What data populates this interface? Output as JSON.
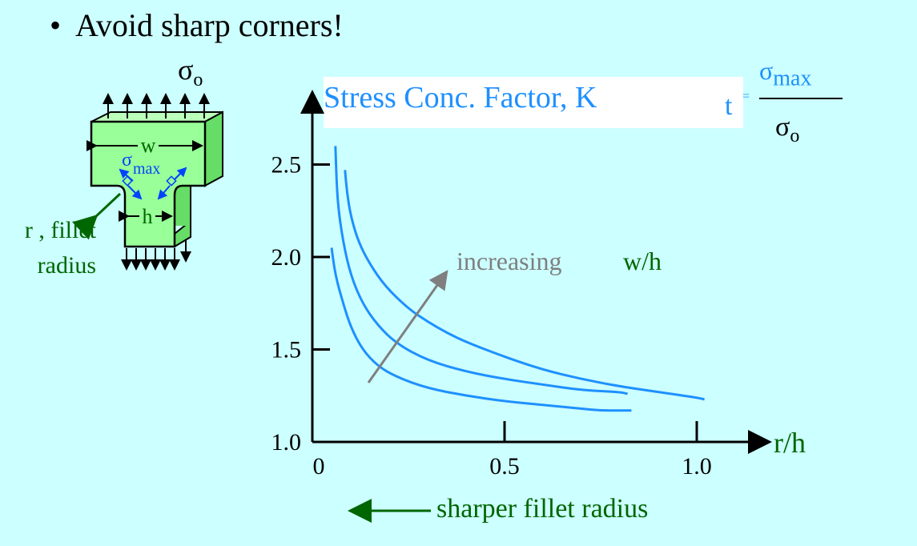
{
  "slide": {
    "bullet": "•",
    "heading": "Avoid sharp corners!"
  },
  "diagram": {
    "sigma_top": "σ",
    "sigma_top_sub": "o",
    "width_label": "w",
    "height_label": "h",
    "sigma_max": "σ",
    "sigma_max_sub": "max",
    "fillet_label": "r , fillet radius"
  },
  "formula": {
    "t_sub": "t",
    "equals": "=",
    "numerator": "σ",
    "numerator_sub": "max",
    "denominator": "σ",
    "denominator_sub": "o"
  },
  "annotations": {
    "increasing": "increasing",
    "w_over_h": "w/h",
    "sharper": "sharper fillet radius"
  },
  "colors": {
    "background": "#ccffff",
    "curve": "#1e90ff",
    "green_text": "#006600",
    "gray_arrow": "#7f7f7f",
    "part_fill": "#99ff99"
  },
  "chart_data": {
    "type": "line",
    "title": "Stress Conc. Factor, K",
    "xlabel": "r/h",
    "ylabel": "",
    "xlim": [
      0,
      1.15
    ],
    "ylim": [
      1.0,
      2.75
    ],
    "x_ticks": [
      "0",
      "0.5",
      "1.0"
    ],
    "x_tick_values": [
      0,
      0.5,
      1.0
    ],
    "y_ticks": [
      "1.0",
      "1.5",
      "2.0",
      "2.5"
    ],
    "y_tick_values": [
      1.0,
      1.5,
      2.0,
      2.5
    ],
    "series": [
      {
        "x": [
          0.05,
          0.06,
          0.08,
          0.1,
          0.13,
          0.17,
          0.22,
          0.3,
          0.4,
          0.5,
          0.6,
          0.7,
          0.75,
          0.8,
          0.83
        ],
        "y": [
          2.05,
          1.9,
          1.75,
          1.62,
          1.5,
          1.41,
          1.35,
          1.29,
          1.25,
          1.22,
          1.2,
          1.18,
          1.17,
          1.17,
          1.17
        ]
      },
      {
        "x": [
          0.06,
          0.065,
          0.08,
          0.1,
          0.13,
          0.17,
          0.22,
          0.3,
          0.4,
          0.5,
          0.6,
          0.7,
          0.8,
          0.82
        ],
        "y": [
          2.6,
          2.3,
          2.08,
          1.9,
          1.75,
          1.63,
          1.53,
          1.44,
          1.38,
          1.34,
          1.31,
          1.28,
          1.27,
          1.26
        ]
      },
      {
        "x": [
          0.085,
          0.09,
          0.1,
          0.12,
          0.15,
          0.19,
          0.25,
          0.3,
          0.35,
          0.4,
          0.5,
          0.6,
          0.7,
          0.8,
          0.9,
          1.0,
          1.02
        ],
        "y": [
          2.47,
          2.35,
          2.22,
          2.08,
          1.96,
          1.84,
          1.72,
          1.65,
          1.59,
          1.54,
          1.46,
          1.39,
          1.34,
          1.3,
          1.27,
          1.24,
          1.23
        ]
      }
    ]
  }
}
